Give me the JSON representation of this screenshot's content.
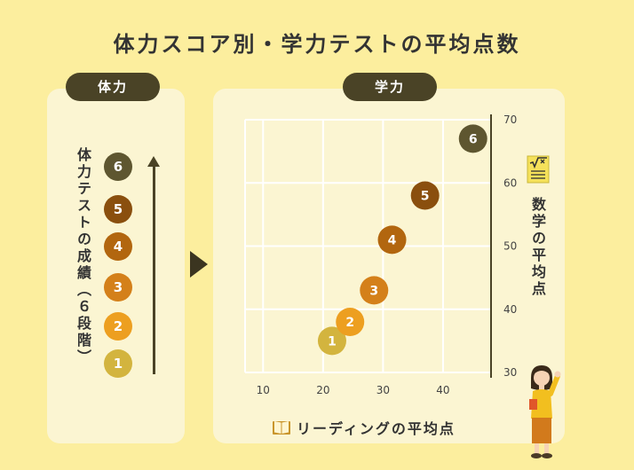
{
  "title": "体力スコア別・学力テストの平均点数",
  "left_panel": {
    "pill": "体力",
    "vertical_label": "体力テストの成績（６段階）",
    "levels": [
      {
        "label": "6",
        "color": "#5E5630"
      },
      {
        "label": "5",
        "color": "#8A4F0E"
      },
      {
        "label": "4",
        "color": "#B2660F"
      },
      {
        "label": "3",
        "color": "#D4801A"
      },
      {
        "label": "2",
        "color": "#ED9F20"
      },
      {
        "label": "1",
        "color": "#D3B43E"
      }
    ]
  },
  "right_panel": {
    "pill": "学力"
  },
  "chart_data": {
    "type": "scatter",
    "xlabel": "リーディングの平均点",
    "ylabel": "数学の平均点",
    "xlim": [
      7,
      48
    ],
    "ylim": [
      30,
      70
    ],
    "xticks": [
      10,
      20,
      30,
      40
    ],
    "yticks": [
      30,
      40,
      50,
      60,
      70
    ],
    "grid": true,
    "points": [
      {
        "label": "1",
        "x": 21.5,
        "y": 35,
        "color": "#D3B43E"
      },
      {
        "label": "2",
        "x": 24.5,
        "y": 38,
        "color": "#ED9F20"
      },
      {
        "label": "3",
        "x": 28.5,
        "y": 43,
        "color": "#D4801A"
      },
      {
        "label": "4",
        "x": 31.5,
        "y": 51,
        "color": "#B2660F"
      },
      {
        "label": "5",
        "x": 37,
        "y": 58,
        "color": "#8A4F0E"
      },
      {
        "label": "6",
        "x": 45,
        "y": 67,
        "color": "#5E5630"
      }
    ]
  },
  "icons": {
    "play": "play-arrow-icon",
    "book": "book-icon",
    "math": "math-sqrt-icon",
    "girl": "girl-illustration"
  }
}
